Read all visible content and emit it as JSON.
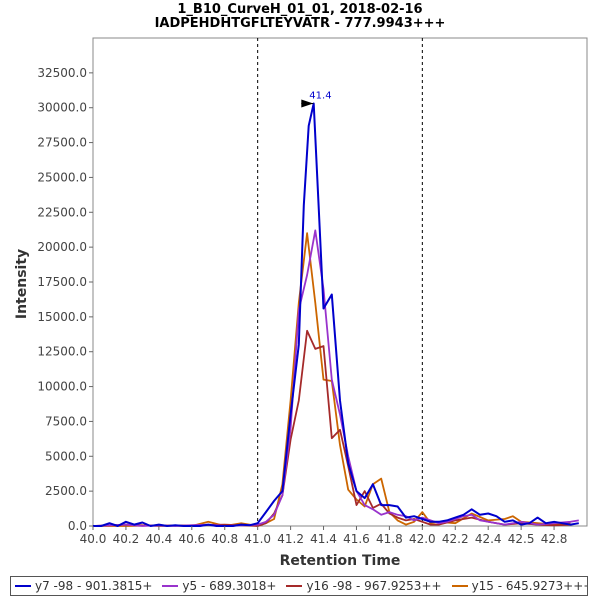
{
  "chart_data": {
    "type": "line",
    "title": "1_B10_CurveH_01_01, 2018-02-16",
    "subtitle": "IADPEHDHTGFLTEYVATR - 777.9943+++",
    "xlabel": "Retention Time",
    "ylabel": "Intensity",
    "xlim": [
      40.0,
      43.0
    ],
    "ylim": [
      0,
      35000
    ],
    "x_ticks": [
      "40.0",
      "40.2",
      "40.4",
      "40.6",
      "40.8",
      "41.0",
      "41.2",
      "41.4",
      "41.6",
      "41.8",
      "42.0",
      "42.2",
      "42.4",
      "42.5",
      "42.8"
    ],
    "y_ticks": [
      "0.0",
      "2500.0",
      "5000.0",
      "7500.0",
      "10000.0",
      "12500.0",
      "15000.0",
      "17500.0",
      "20000.0",
      "22500.0",
      "25000.0",
      "27500.0",
      "30000.0",
      "32500.0"
    ],
    "vlines": [
      41.0,
      42.0
    ],
    "peak_annotation": {
      "x": 41.35,
      "y": 30300,
      "label": "41.4"
    },
    "legend_position": "bottom",
    "series": [
      {
        "name": "y7 -98 - 901.3815+",
        "color": "#0000cc",
        "x": [
          40.0,
          40.05,
          40.1,
          40.15,
          40.2,
          40.25,
          40.3,
          40.35,
          40.4,
          40.45,
          40.5,
          40.55,
          40.6,
          40.65,
          40.7,
          40.75,
          40.8,
          40.85,
          40.9,
          40.95,
          41.0,
          41.05,
          41.1,
          41.15,
          41.2,
          41.25,
          41.28,
          41.31,
          41.34,
          41.37,
          41.4,
          41.45,
          41.5,
          41.55,
          41.6,
          41.65,
          41.7,
          41.75,
          41.8,
          41.85,
          41.9,
          41.95,
          42.0,
          42.05,
          42.1,
          42.15,
          42.2,
          42.25,
          42.3,
          42.35,
          42.4,
          42.45,
          42.5,
          42.55,
          42.6,
          42.65,
          42.7,
          42.75,
          42.8,
          42.85,
          42.9,
          42.95
        ],
        "y": [
          0,
          0,
          200,
          0,
          300,
          100,
          250,
          0,
          100,
          0,
          50,
          0,
          0,
          0,
          100,
          0,
          0,
          0,
          100,
          50,
          200,
          1000,
          1800,
          2500,
          8000,
          13000,
          23000,
          28700,
          30300,
          23000,
          15600,
          16600,
          9000,
          4500,
          2500,
          2000,
          3000,
          1500,
          1500,
          1400,
          600,
          700,
          500,
          300,
          300,
          400,
          600,
          800,
          1200,
          800,
          900,
          700,
          300,
          400,
          100,
          200,
          600,
          200,
          300,
          200,
          100,
          200
        ]
      },
      {
        "name": "y5 - 689.3018+",
        "color": "#9933cc",
        "x": [
          40.0,
          40.1,
          40.2,
          40.3,
          40.4,
          40.5,
          40.6,
          40.7,
          40.8,
          40.9,
          41.0,
          41.05,
          41.1,
          41.15,
          41.2,
          41.25,
          41.3,
          41.35,
          41.4,
          41.45,
          41.5,
          41.55,
          41.6,
          41.65,
          41.7,
          41.75,
          41.8,
          41.85,
          41.9,
          41.95,
          42.0,
          42.05,
          42.1,
          42.15,
          42.2,
          42.25,
          42.3,
          42.35,
          42.4,
          42.45,
          42.5,
          42.55,
          42.6,
          42.7,
          42.8,
          42.9,
          42.95
        ],
        "y": [
          0,
          50,
          100,
          0,
          50,
          0,
          50,
          100,
          0,
          50,
          100,
          300,
          800,
          2200,
          7000,
          15500,
          18000,
          21200,
          17000,
          10500,
          8000,
          5000,
          2500,
          1500,
          1200,
          800,
          1000,
          800,
          700,
          400,
          600,
          400,
          200,
          300,
          500,
          700,
          800,
          400,
          300,
          200,
          100,
          200,
          300,
          100,
          200,
          300,
          400
        ]
      },
      {
        "name": "y16 -98 - 967.9253++",
        "color": "#a52a2a",
        "x": [
          40.0,
          40.2,
          40.4,
          40.6,
          40.8,
          41.0,
          41.05,
          41.1,
          41.15,
          41.2,
          41.25,
          41.3,
          41.35,
          41.4,
          41.45,
          41.5,
          41.55,
          41.6,
          41.65,
          41.7,
          41.75,
          41.8,
          41.85,
          41.9,
          41.95,
          42.0,
          42.05,
          42.1,
          42.2,
          42.3,
          42.4,
          42.5,
          42.6,
          42.7,
          42.8,
          42.9
        ],
        "y": [
          0,
          100,
          0,
          50,
          100,
          0,
          200,
          900,
          2200,
          6200,
          9000,
          14000,
          12700,
          12900,
          6300,
          6900,
          4300,
          1500,
          2500,
          1300,
          1600,
          900,
          600,
          400,
          500,
          300,
          100,
          100,
          400,
          600,
          300,
          100,
          200,
          100,
          50,
          100
        ]
      },
      {
        "name": "y15 - 645.9273+++",
        "color": "#cc6600",
        "x": [
          40.0,
          40.2,
          40.4,
          40.6,
          40.7,
          40.8,
          40.9,
          41.0,
          41.05,
          41.1,
          41.15,
          41.2,
          41.25,
          41.3,
          41.35,
          41.4,
          41.45,
          41.5,
          41.55,
          41.6,
          41.65,
          41.7,
          41.75,
          41.8,
          41.85,
          41.9,
          41.95,
          42.0,
          42.05,
          42.1,
          42.2,
          42.3,
          42.4,
          42.5,
          42.55,
          42.6,
          42.7,
          42.8,
          42.9
        ],
        "y": [
          0,
          0,
          50,
          0,
          300,
          0,
          200,
          0,
          200,
          500,
          3000,
          9000,
          16000,
          21000,
          16000,
          10500,
          10400,
          5800,
          2600,
          1900,
          1400,
          3000,
          3400,
          1000,
          400,
          100,
          300,
          1000,
          200,
          300,
          200,
          900,
          400,
          500,
          700,
          300,
          200,
          100,
          200
        ]
      }
    ]
  }
}
